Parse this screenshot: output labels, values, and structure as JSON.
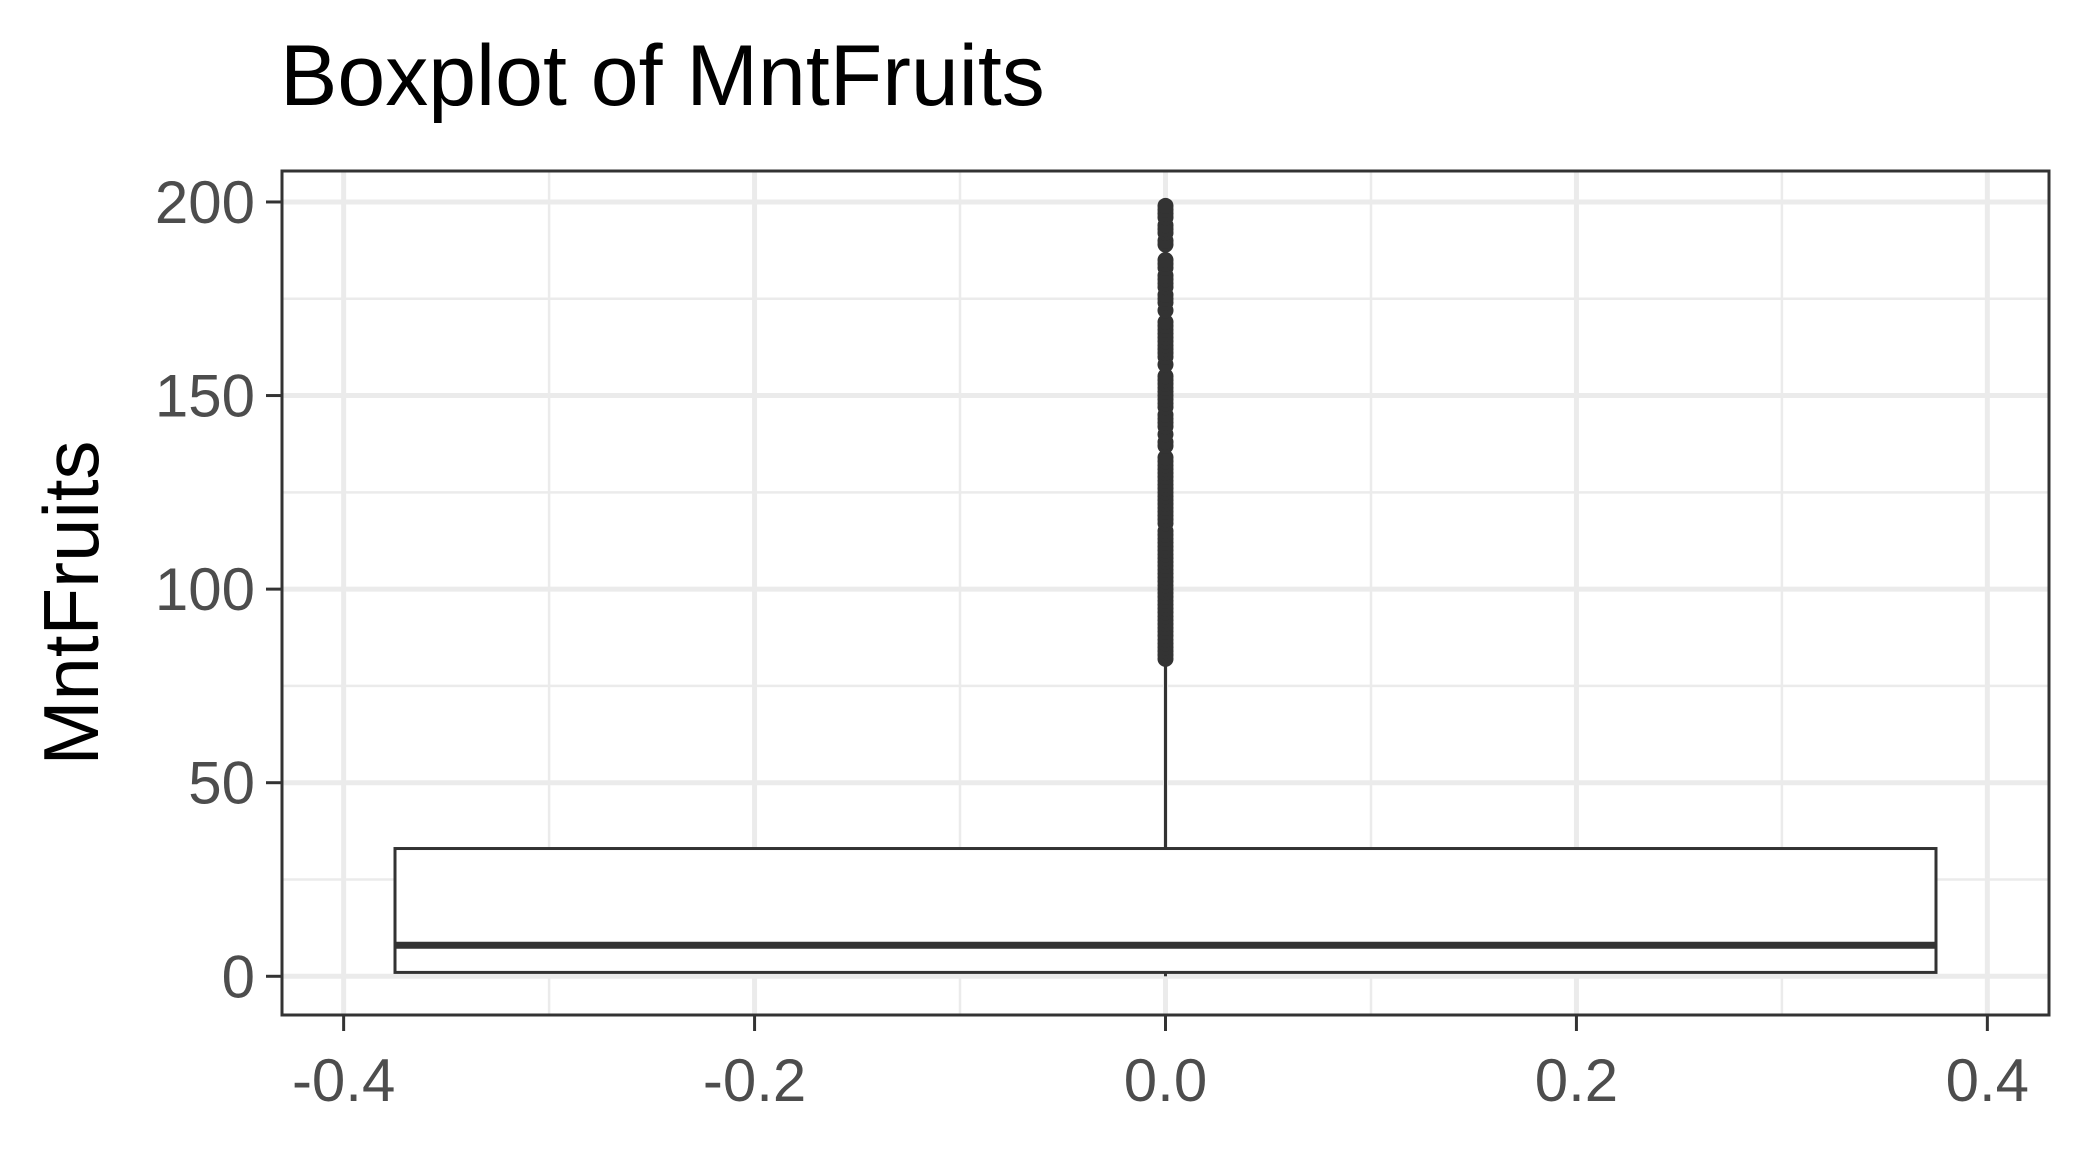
{
  "chart_data": {
    "type": "boxplot",
    "title": "Boxplot of MntFruits",
    "xlabel": "",
    "ylabel": "MntFruits",
    "xlim": [
      -0.43,
      0.43
    ],
    "ylim": [
      -10,
      208
    ],
    "x_ticks": [
      -0.4,
      -0.2,
      0.0,
      0.2,
      0.4
    ],
    "x_tick_labels": [
      "-0.4",
      "-0.2",
      "0.0",
      "0.2",
      "0.4"
    ],
    "y_ticks": [
      0,
      50,
      100,
      150,
      200
    ],
    "y_tick_labels": [
      "0",
      "50",
      "100",
      "150",
      "200"
    ],
    "grid": true,
    "box": {
      "x_center": 0.0,
      "x_min": -0.375,
      "x_max": 0.375,
      "min": 0,
      "q1": 1,
      "median": 8,
      "q3": 33,
      "whisker_high": 81
    },
    "outliers": [
      82,
      83,
      84,
      85,
      86,
      87,
      88,
      89,
      90,
      91,
      92,
      93,
      94,
      95,
      96,
      97,
      98,
      99,
      100,
      101,
      102,
      103,
      104,
      105,
      106,
      107,
      108,
      109,
      110,
      111,
      112,
      113,
      114,
      115,
      117,
      118,
      119,
      120,
      121,
      122,
      123,
      124,
      125,
      126,
      127,
      128,
      129,
      130,
      131,
      132,
      133,
      134,
      137,
      138,
      140,
      142,
      143,
      144,
      145,
      147,
      148,
      149,
      150,
      151,
      152,
      153,
      154,
      155,
      158,
      160,
      161,
      162,
      163,
      164,
      165,
      166,
      167,
      168,
      169,
      172,
      174,
      175,
      176,
      178,
      179,
      180,
      181,
      183,
      184,
      185,
      189,
      190,
      192,
      193,
      194,
      196,
      197,
      198,
      199
    ],
    "colors": {
      "box_fill": "#ffffff",
      "line": "#333333",
      "grid": "#ebebeb",
      "panel_border": "#333333"
    }
  }
}
